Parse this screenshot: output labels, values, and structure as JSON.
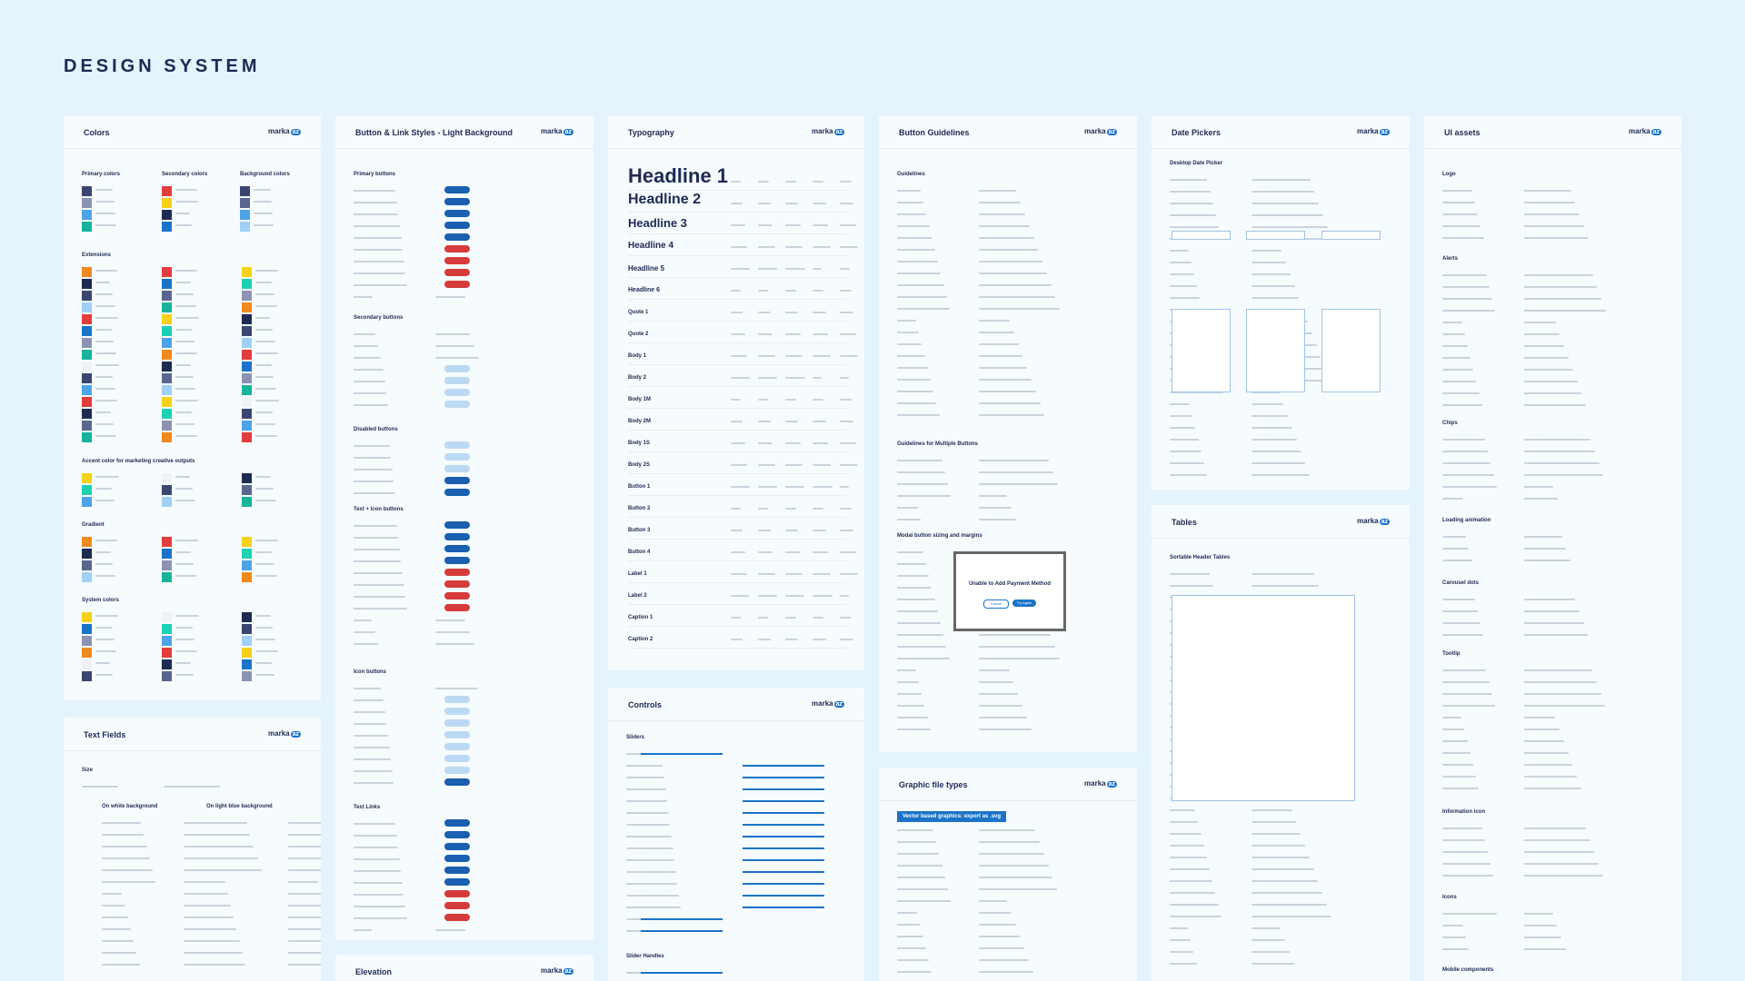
{
  "title": "DESIGN SYSTEM",
  "brand": "marka",
  "brand_badge": "az",
  "panels": [
    {
      "title": "Colors",
      "sections": [
        "Primary colors",
        "Secondary colors",
        "Background colors",
        "Extensions",
        "Accent color for marketing creative outputs",
        "Gradient",
        "System colors"
      ]
    },
    {
      "title": "Text Fields",
      "sections": [
        "Size",
        "On white background",
        "On light blue background"
      ]
    },
    {
      "title": "Button & Link Styles - Light Background",
      "sections": [
        "Primary buttons",
        "Secondary buttons",
        "Disabled buttons",
        "Text + Icon buttons",
        "Icon buttons",
        "Text Links"
      ]
    },
    {
      "title": "Elevation",
      "sections": []
    },
    {
      "title": "Typography",
      "sections": [
        "Headline 1",
        "Headline 2",
        "Headline 3",
        "Headline 4",
        "Headline 5",
        "Headline 6",
        "Quote 1",
        "Quote 2",
        "Body 1",
        "Body 2",
        "Body 1M",
        "Body 2M",
        "Body 1S",
        "Body 2S",
        "Button 1",
        "Button 2",
        "Button 3",
        "Button 4",
        "Label 1",
        "Label 2",
        "Caption 1",
        "Caption 2"
      ]
    },
    {
      "title": "Controls",
      "sections": [
        "Sliders",
        "Slider Handles"
      ]
    },
    {
      "title": "Button Guidelines",
      "sections": [
        "Guidelines",
        "Guidelines for Multiple Buttons",
        "Modal button sizing and margins"
      ],
      "modal": {
        "title": "Unable to Add Payment Method",
        "buttons": [
          "Cancel",
          "Try Again"
        ]
      }
    },
    {
      "title": "Graphic file types",
      "sections": [
        "Vector based graphics: export as .svg"
      ]
    },
    {
      "title": "Date Pickers",
      "sections": [
        "Desktop Date Picker"
      ]
    },
    {
      "title": "Tables",
      "sections": [
        "Sortable Header Tables"
      ]
    },
    {
      "title": "UI assets",
      "sections": [
        "Logo",
        "Alerts",
        "Chips",
        "Loading animation",
        "Carousel dots",
        "Tooltip",
        "Information icon",
        "Icons",
        "Mobile components"
      ]
    }
  ]
}
